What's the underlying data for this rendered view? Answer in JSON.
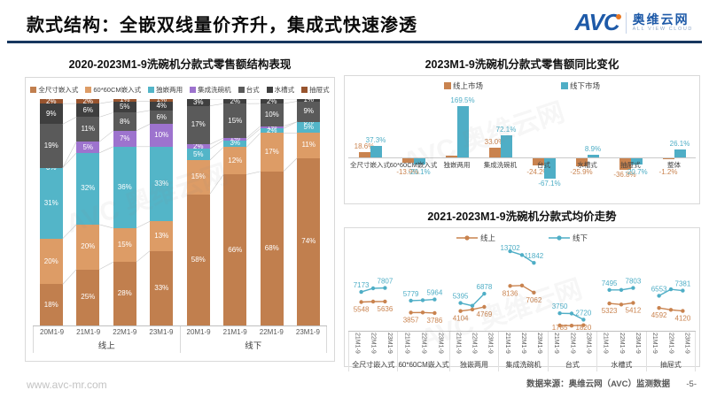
{
  "header": {
    "title": "款式结构：全嵌双线量价齐升，集成式快速渗透",
    "logo": {
      "avc": "AVC",
      "cn": "奥维云网",
      "en": "ALL VIEW CLOUD"
    }
  },
  "footer": {
    "site": "www.avc-mr.com",
    "source": "数据来源：奥维云网（AVC）监测数据",
    "page": "-5-"
  },
  "watermark": {
    "text": "AVC 奥维云网"
  },
  "colors": {
    "accent_navy": "#17375E",
    "logo_blue": "#1E5AA8",
    "logo_orange": "#E87722",
    "online": "#C9834F",
    "offline": "#4FAEC6",
    "border": "#D9D9D9"
  },
  "chart_data": [
    {
      "type": "bar",
      "stacked": true,
      "title": "2020-2023M1-9洗碗机分款式零售额结构表现",
      "legend": [
        "全尺寸嵌入式",
        "60*60CM嵌入式",
        "独嵌两用",
        "集成洗碗机",
        "台式",
        "水槽式",
        "抽屉式"
      ],
      "series_colors": [
        "#C17F4E",
        "#DD9C66",
        "#53B5C8",
        "#9D73CE",
        "#5A5A5A",
        "#3F3F3F",
        "#98542E"
      ],
      "ylim": [
        0,
        100
      ],
      "groups": [
        {
          "label": "线上",
          "categories": [
            "20M1-9",
            "21M1-9",
            "22M1-9",
            "23M1-9"
          ],
          "values": [
            [
              18,
              20,
              31,
              0,
              19,
              9,
              2
            ],
            [
              25,
              20,
              32,
              5,
              11,
              6,
              2
            ],
            [
              28,
              15,
              36,
              7,
              8,
              5,
              1
            ],
            [
              33,
              13,
              33,
              10,
              6,
              4,
              1
            ]
          ],
          "labels": [
            [
              "18%",
              "20%",
              "31%",
              "0%",
              "19%",
              "9%",
              "2%"
            ],
            [
              "25%",
              "20%",
              "32%",
              "5%",
              "11%",
              "6%",
              "2%"
            ],
            [
              "28%",
              "15%",
              "36%",
              "7%",
              "8%",
              "5%",
              "1%"
            ],
            [
              "33%",
              "13%",
              "33%",
              "10%",
              "6%",
              "4%",
              "1%"
            ]
          ]
        },
        {
          "label": "线下",
          "categories": [
            "20M1-9",
            "21M1-9",
            "22M1-9",
            "23M1-9"
          ],
          "values": [
            [
              58,
              15,
              5,
              2,
              17,
              3,
              0
            ],
            [
              66,
              12,
              3,
              1,
              15,
              2,
              0
            ],
            [
              68,
              17,
              2,
              1,
              10,
              2,
              0
            ],
            [
              74,
              11,
              5,
              0,
              9,
              1,
              0
            ]
          ],
          "labels": [
            [
              "58%",
              "15%",
              "5%",
              "2%",
              "17%",
              "3%",
              ""
            ],
            [
              "66%",
              "12%",
              "3%",
              "1%",
              "15%",
              "2%",
              ""
            ],
            [
              "68%",
              "17%",
              "2%",
              "1%",
              "10%",
              "2%",
              ""
            ],
            [
              "74%",
              "11%",
              "5%",
              "0%",
              "9%",
              "1%",
              ""
            ]
          ]
        }
      ]
    },
    {
      "type": "bar",
      "title": "2023M1-9洗碗机分款式零售额同比变化",
      "legend": [
        "线上市场",
        "线下市场"
      ],
      "categories": [
        "全尺寸嵌入式",
        "60*60CM嵌入式",
        "独嵌两用",
        "集成洗碗机",
        "台式",
        "水槽式",
        "抽屉式",
        "整体"
      ],
      "ylim": [
        -80,
        185
      ],
      "series": [
        {
          "name": "线上市场",
          "color": "#C9834F",
          "values": [
            18.6,
            -13.9,
            7,
            33.0,
            -24.2,
            -25.9,
            -36.8,
            -1.2
          ],
          "labels": [
            "18.6%",
            "-13.9%",
            "",
            "33.0%",
            "-24.2%",
            "-25.9%",
            "-36.8%",
            "-1.2%"
          ]
        },
        {
          "name": "线下市场",
          "color": "#4FAEC6",
          "values": [
            37.3,
            -20.1,
            169.5,
            72.1,
            -67.1,
            8.9,
            -20.7,
            26.1
          ],
          "labels": [
            "37.3%",
            "-20.1%",
            "169.5%",
            "72.1%",
            "-67.1%",
            "8.9%",
            "-20.7%",
            "26.1%"
          ]
        }
      ]
    },
    {
      "type": "line",
      "title": "2021-2023M1-9洗碗机分款式均价走势",
      "legend": [
        "线上",
        "线下"
      ],
      "series_colors": {
        "online": "#C9834F",
        "offline": "#4FAEC6"
      },
      "x_ticks": [
        "21M1-9",
        "22M1-9",
        "23M1-9"
      ],
      "groups": [
        {
          "name": "全尺寸嵌入式",
          "online": [
            5548,
            5620,
            5636
          ],
          "offline": [
            7173,
            7750,
            7807
          ],
          "online_labels": [
            "5548",
            "",
            "5636"
          ],
          "offline_labels": [
            "7173",
            "",
            "7807"
          ]
        },
        {
          "name": "60*60CM嵌入式",
          "online": [
            3857,
            3870,
            3786
          ],
          "offline": [
            5779,
            5850,
            5964
          ],
          "online_labels": [
            "3857",
            "",
            "3786"
          ],
          "offline_labels": [
            "5779",
            "",
            "5964"
          ]
        },
        {
          "name": "独嵌两用",
          "online": [
            4104,
            4350,
            4769
          ],
          "offline": [
            5395,
            4950,
            6878
          ],
          "online_labels": [
            "4104",
            "",
            "4769"
          ],
          "offline_labels": [
            "5395",
            "",
            "6878"
          ]
        },
        {
          "name": "集成洗碗机",
          "online": [
            8136,
            8200,
            7062
          ],
          "offline": [
            13702,
            13100,
            11842
          ],
          "online_labels": [
            "8136",
            "",
            "7062"
          ],
          "offline_labels": [
            "13702",
            "",
            "11842"
          ]
        },
        {
          "name": "台式",
          "online": [
            1785,
            1760,
            1820
          ],
          "offline": [
            3750,
            3700,
            2720
          ],
          "online_labels": [
            "1785",
            "",
            "1820"
          ],
          "offline_labels": [
            "3750",
            "",
            "2720"
          ]
        },
        {
          "name": "水槽式",
          "online": [
            5323,
            5150,
            5412
          ],
          "offline": [
            7495,
            7500,
            7803
          ],
          "online_labels": [
            "5323",
            "",
            "5412"
          ],
          "offline_labels": [
            "7495",
            "",
            "7803"
          ]
        },
        {
          "name": "抽屉式",
          "online": [
            4592,
            4300,
            4120
          ],
          "offline": [
            6553,
            7600,
            7381
          ],
          "online_labels": [
            "4592",
            "",
            "4120"
          ],
          "offline_labels": [
            "6553",
            "",
            "7381"
          ]
        }
      ]
    }
  ]
}
